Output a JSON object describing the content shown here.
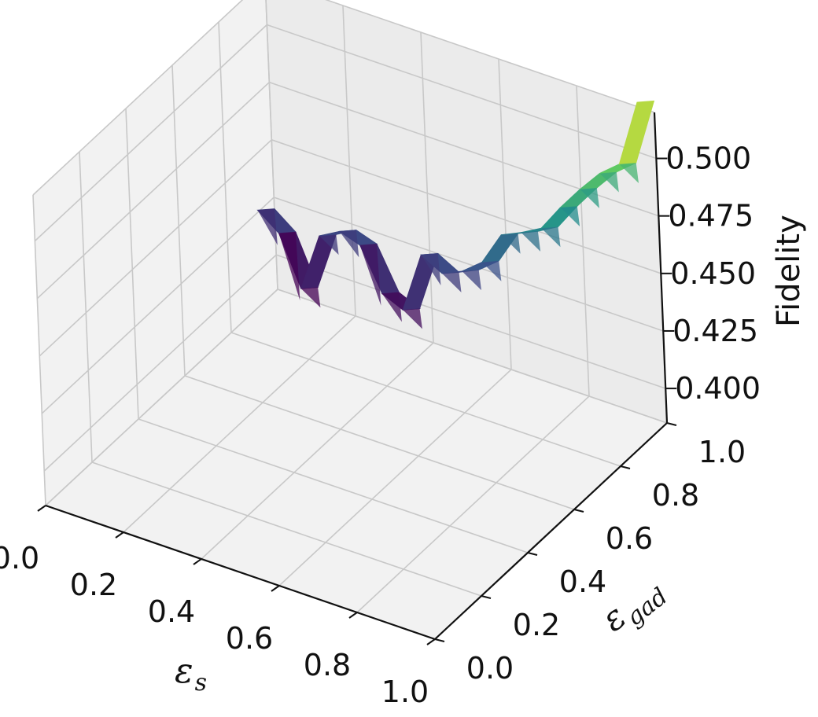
{
  "chart_data": {
    "type": "surface3d",
    "title": "",
    "xlabel": {
      "symbol": "ε",
      "subscript": "s"
    },
    "ylabel": {
      "symbol": "ε",
      "subscript": "gad"
    },
    "zlabel": "Fidelity",
    "xlim": [
      0,
      1
    ],
    "ylim": [
      0,
      1
    ],
    "zlim": [
      0.385,
      0.52
    ],
    "x_ticks": [
      "0.0",
      "0.2",
      "0.4",
      "0.6",
      "0.8",
      "1.0"
    ],
    "y_ticks": [
      "0.0",
      "0.2",
      "0.4",
      "0.6",
      "0.8",
      "1.0"
    ],
    "z_ticks": [
      "0.400",
      "0.425",
      "0.450",
      "0.475",
      "0.500"
    ],
    "grid": true,
    "colormap": "viridis",
    "surface": {
      "y": 1.0,
      "x": [
        0.0,
        0.053,
        0.105,
        0.158,
        0.211,
        0.263,
        0.316,
        0.368,
        0.421,
        0.474,
        0.526,
        0.579,
        0.632,
        0.684,
        0.737,
        0.789,
        0.842,
        0.895,
        0.947,
        1.0
      ],
      "z": [
        0.42,
        0.413,
        0.392,
        0.418,
        0.423,
        0.42,
        0.402,
        0.398,
        0.425,
        0.42,
        0.424,
        0.431,
        0.446,
        0.45,
        0.455,
        0.467,
        0.478,
        0.488,
        0.495,
        0.525
      ]
    }
  }
}
